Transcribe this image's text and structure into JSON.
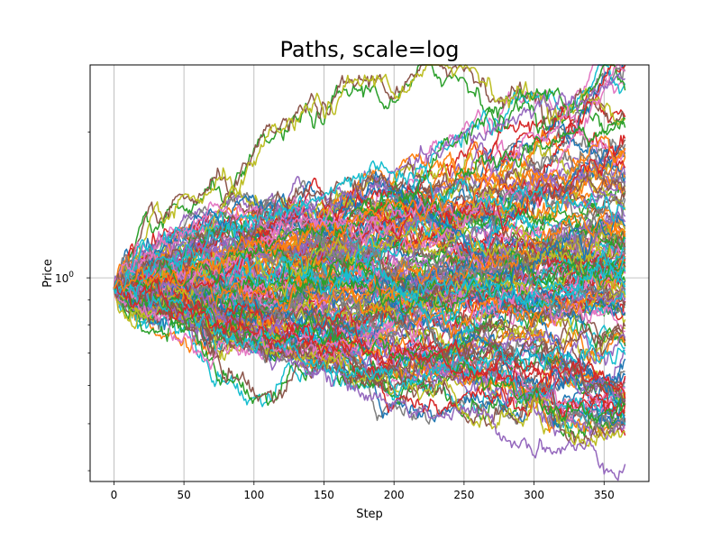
{
  "chart_data": {
    "type": "line",
    "title": "Paths, scale=log",
    "xlabel": "Step",
    "ylabel": "Price",
    "xlim": [
      -17,
      382
    ],
    "ylim": [
      0.38,
      2.75
    ],
    "yscale": "log",
    "grid": true,
    "x_ticks": [
      "0",
      "50",
      "100",
      "150",
      "200",
      "250",
      "300",
      "350"
    ],
    "y_ticks": [
      {
        "base": "10",
        "exponent": "0",
        "value": 1
      }
    ],
    "y_minor_ticks": [
      0.4,
      0.5,
      0.6,
      0.7,
      0.8,
      0.9,
      2
    ],
    "palette": [
      "#1f77b4",
      "#ff7f0e",
      "#2ca02c",
      "#d62728",
      "#9467bd",
      "#8c564b",
      "#e377c2",
      "#7f7f7f",
      "#bcbd22",
      "#17becf"
    ],
    "paths": {
      "count": 150,
      "steps": 366,
      "start_value": 0.95,
      "highlighted": [
        {
          "color": "#9467bd",
          "x": [
            0,
            100,
            200,
            250,
            300,
            350,
            365
          ],
          "y": [
            0.95,
            1.25,
            1.6,
            1.9,
            2.25,
            2.45,
            2.55
          ]
        },
        {
          "color": "#9467bd",
          "x": [
            0,
            100,
            200,
            250,
            300,
            350,
            365
          ],
          "y": [
            0.95,
            0.72,
            0.55,
            0.52,
            0.46,
            0.43,
            0.42
          ]
        },
        {
          "color": "#2ca02c",
          "x": [
            0,
            100,
            200,
            250,
            300,
            350,
            365
          ],
          "y": [
            0.95,
            1.15,
            1.4,
            1.6,
            1.85,
            2.05,
            2.05
          ]
        },
        {
          "color": "#2ca02c",
          "x": [
            0,
            100,
            200,
            250,
            300,
            350,
            365
          ],
          "y": [
            0.95,
            0.78,
            0.7,
            0.65,
            0.58,
            0.53,
            0.54
          ]
        },
        {
          "color": "#e377c2",
          "x": [
            0,
            40,
            70,
            100,
            150,
            200
          ],
          "y": [
            0.95,
            1.2,
            1.38,
            1.3,
            1.25,
            1.3
          ]
        },
        {
          "color": "#e377c2",
          "x": [
            0,
            40,
            70,
            100,
            150,
            200
          ],
          "y": [
            0.95,
            0.8,
            0.68,
            0.72,
            0.74,
            0.8
          ]
        },
        {
          "color": "#8c564b",
          "x": [
            0,
            100,
            150,
            200,
            250,
            300,
            365
          ],
          "y": [
            0.95,
            1.3,
            1.55,
            1.6,
            1.55,
            1.5,
            1.55
          ]
        },
        {
          "color": "#8c564b",
          "x": [
            0,
            100,
            150,
            200,
            250,
            300,
            365
          ],
          "y": [
            0.95,
            0.72,
            0.64,
            0.66,
            0.7,
            0.72,
            0.74
          ]
        },
        {
          "color": "#17becf",
          "x": [
            0,
            100,
            190,
            250,
            300,
            365
          ],
          "y": [
            0.95,
            1.3,
            1.62,
            1.5,
            1.45,
            1.4
          ]
        },
        {
          "color": "#17becf",
          "x": [
            0,
            100,
            200,
            250,
            300,
            365
          ],
          "y": [
            0.95,
            0.74,
            0.62,
            0.66,
            0.7,
            0.7
          ]
        },
        {
          "color": "#d62728",
          "x": [
            0,
            100,
            200,
            250,
            300,
            365
          ],
          "y": [
            0.95,
            0.78,
            0.7,
            0.66,
            0.64,
            0.6
          ]
        },
        {
          "color": "#ff7f0e",
          "x": [
            0,
            100,
            200,
            300,
            365
          ],
          "y": [
            0.95,
            1.15,
            1.35,
            1.6,
            1.78
          ]
        }
      ]
    }
  }
}
